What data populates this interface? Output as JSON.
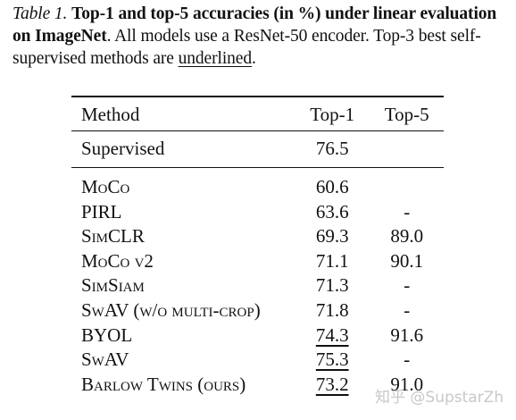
{
  "caption": {
    "label": "Table 1.",
    "bold_text": "Top-1 and top-5 accuracies (in %) under linear evaluation on ImageNet",
    "text_before_underline": ". All models use a ResNet-50 encoder. Top-3 best self-supervised methods are ",
    "underlined_word": "underlined",
    "text_end": "."
  },
  "table": {
    "headers": {
      "method": "Method",
      "top1": "Top-1",
      "top5": "Top-5"
    },
    "supervised": {
      "method": "Supervised",
      "top1": "76.5",
      "top5": ""
    },
    "rows": [
      {
        "method": "MoCo",
        "top1": "60.6",
        "top5": ""
      },
      {
        "method": "PIRL",
        "top1": "63.6",
        "top5": "-"
      },
      {
        "method": "SimCLR",
        "top1": "69.3",
        "top5": "89.0"
      },
      {
        "method": "MoCo v2",
        "top1": "71.1",
        "top5": "90.1"
      },
      {
        "method": "SimSiam",
        "top1": "71.3",
        "top5": "-"
      },
      {
        "method": "SwAV (w/o multi-crop)",
        "top1": "71.8",
        "top5": "-"
      },
      {
        "method": "BYOL",
        "top1": "74.3",
        "top5": "91.6"
      },
      {
        "method": "SwAV",
        "top1": "75.3",
        "top5": "-"
      },
      {
        "method": "Barlow Twins (ours)",
        "top1": "73.2",
        "top5": "91.0"
      }
    ]
  },
  "watermark": "知乎 @SupstarZh"
}
